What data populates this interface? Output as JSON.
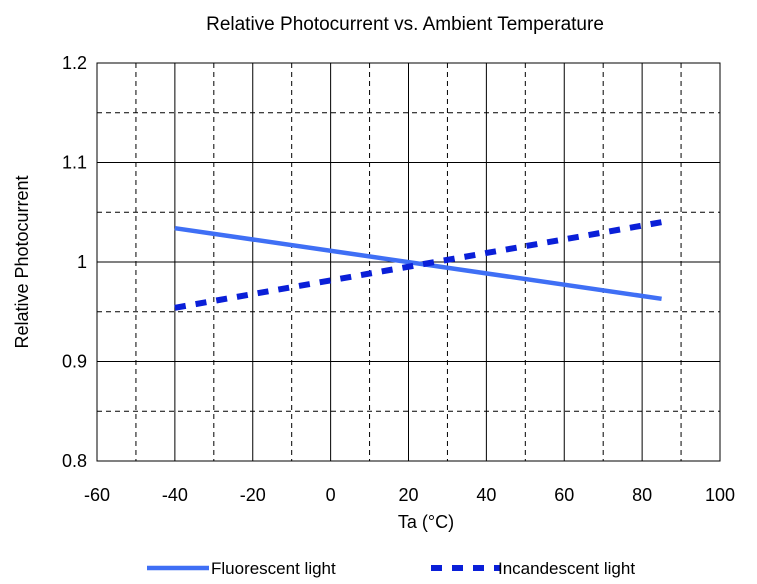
{
  "chart_data": {
    "type": "line",
    "title": "Relative Photocurrent vs. Ambient Temperature",
    "xlabel": "Ta (°C)",
    "ylabel": "Relative Photocurrent",
    "xlim": [
      -60,
      100
    ],
    "ylim": [
      0.8,
      1.2
    ],
    "x_ticks": [
      "-60",
      "-40",
      "-20",
      "0",
      "20",
      "40",
      "60",
      "80",
      "100"
    ],
    "y_ticks": [
      "0.8",
      "0.9",
      "1",
      "1.1",
      "1.2"
    ],
    "grid": true,
    "legend_position": "bottom",
    "series": [
      {
        "name": "Fluorescent light",
        "style": "solid",
        "color": "#3f6ff5",
        "points": [
          [
            -40,
            1.034
          ],
          [
            85,
            0.963
          ]
        ]
      },
      {
        "name": "Incandescent light",
        "style": "dashed",
        "color": "#0a1fd8",
        "points": [
          [
            -40,
            0.954
          ],
          [
            85,
            1.04
          ]
        ]
      }
    ]
  }
}
